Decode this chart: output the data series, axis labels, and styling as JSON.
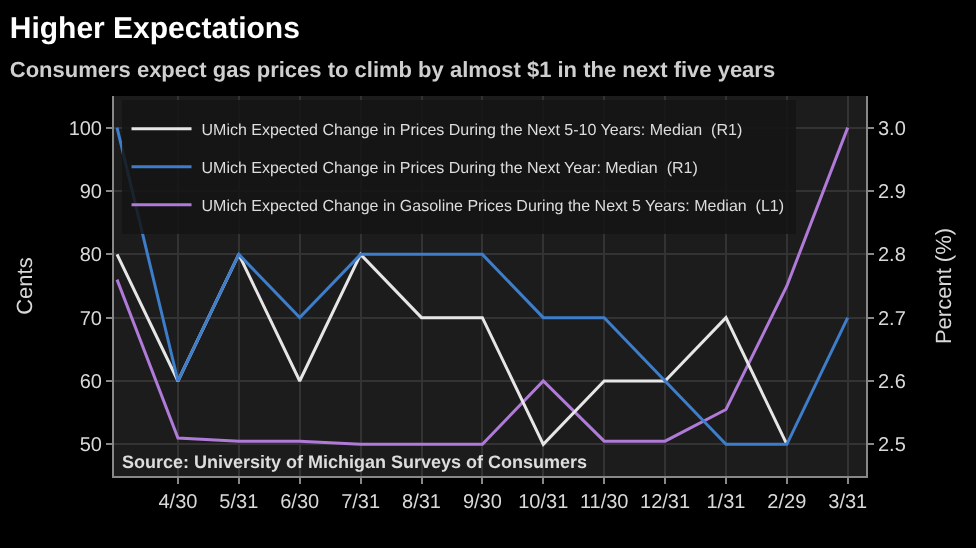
{
  "chart_data": {
    "type": "line",
    "title": "Higher Expectations",
    "subtitle": "Consumers expect gas prices to climb by almost $1 in the next five years",
    "ylabel": "Cents",
    "y2label": "Percent (%)",
    "categories": [
      null,
      "4/30",
      "5/31",
      "6/30",
      "7/31",
      "8/31",
      "9/30",
      "10/31",
      "11/30",
      "12/31",
      "1/31",
      "2/29",
      "3/31"
    ],
    "series": [
      {
        "name": "UMich Expected Change in Prices During the Next 5-10 Years: Median  (R1)",
        "color": "#e6e6e6",
        "axis": "y2",
        "values": [
          2.8,
          2.6,
          2.8,
          2.6,
          2.8,
          2.7,
          2.7,
          2.5,
          2.6,
          2.6,
          2.7,
          2.5,
          null
        ]
      },
      {
        "name": "UMich Expected Change in Prices During the Next Year: Median  (R1)",
        "color": "#3d7dc9",
        "axis": "y2",
        "values": [
          3.0,
          2.6,
          2.8,
          2.7,
          2.8,
          2.8,
          2.8,
          2.7,
          2.7,
          2.6,
          2.5,
          2.5,
          2.7
        ]
      },
      {
        "name": "UMich Expected Change in Gasoline Prices During the Next 5 Years: Median  (L1)",
        "color": "#b07ad8",
        "axis": "y",
        "values": [
          76,
          51,
          50.5,
          50.5,
          50,
          50,
          50,
          60,
          50.5,
          50.5,
          55.5,
          75,
          100
        ]
      }
    ],
    "ylim": [
      45,
      105
    ],
    "yticks": [
      50,
      60,
      70,
      80,
      90,
      100
    ],
    "y2lim": [
      2.45,
      3.05
    ],
    "y2ticks": [
      2.5,
      2.6,
      2.7,
      2.8,
      2.9,
      {
        "value": 3.0,
        "label": "3.0"
      }
    ],
    "grid": true,
    "legend": "top left",
    "line_style": "solid",
    "annotations": [
      "Source: University of Michigan Surveys of Consumers"
    ]
  }
}
